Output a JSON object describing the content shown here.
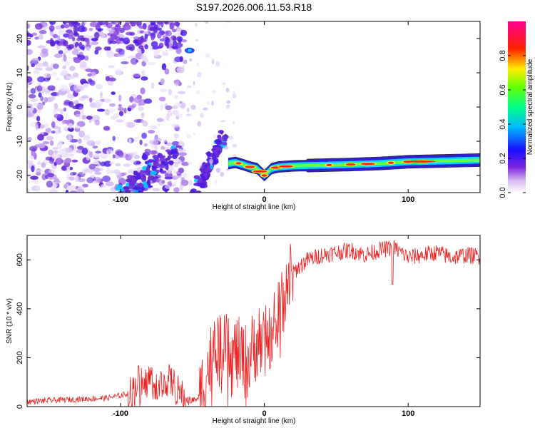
{
  "title": "S197.2026.006.11.53.R18",
  "chart_data": [
    {
      "type": "heatmap",
      "name": "spectrogram",
      "xlabel": "Height of straight line (km)",
      "ylabel": "Frequency (Hz)",
      "xlim": [
        -165,
        150
      ],
      "ylim": [
        -25,
        25
      ],
      "xticks": [
        -100,
        0,
        100
      ],
      "xtick_labels": [
        "-100",
        "0",
        "100"
      ],
      "yticks": [
        -20,
        -10,
        0,
        10,
        20
      ],
      "ytick_labels": [
        "-20",
        "-10",
        "0",
        "10",
        "20"
      ],
      "colorbar": {
        "label": "Normalized spectral amplitude",
        "range": [
          0,
          1
        ],
        "ticks": [
          0.0,
          0.2,
          0.4,
          0.6,
          0.8
        ],
        "tick_labels": [
          "0.0",
          "0.2",
          "0.4",
          "0.6",
          "0.8"
        ],
        "colors": [
          "#ffffff",
          "#a020f0",
          "#0000ff",
          "#00ffff",
          "#00ff00",
          "#ffff00",
          "#ff0000",
          "#ff0090"
        ]
      },
      "ridge": {
        "x": [
          -25,
          -20,
          -15,
          -10,
          -5,
          0,
          5,
          10,
          20,
          40,
          60,
          80,
          100,
          120,
          150
        ],
        "y": [
          -16.5,
          -16.2,
          -16.8,
          -17.5,
          -18.0,
          -20.0,
          -18.0,
          -17.5,
          -17.2,
          -17.0,
          -16.8,
          -16.5,
          -16.0,
          -15.8,
          -15.5
        ]
      },
      "bright_spots_x": [
        -18,
        -10,
        -3,
        0,
        8,
        15,
        45,
        60,
        72,
        88,
        100,
        110
      ]
    },
    {
      "type": "line",
      "name": "snr",
      "xlabel": "Height of straight line (km)",
      "ylabel": "SNR (10 * v/v)",
      "xlim": [
        -165,
        150
      ],
      "ylim": [
        0,
        700
      ],
      "xticks": [
        -100,
        0,
        100
      ],
      "xtick_labels": [
        "-100",
        "0",
        "100"
      ],
      "yticks": [
        0,
        200,
        400,
        600
      ],
      "ytick_labels": [
        "0",
        "200",
        "400",
        "600"
      ],
      "color": "#ee2222",
      "series": [
        {
          "name": "SNR",
          "x": [
            -165,
            -150,
            -130,
            -110,
            -100,
            -92,
            -88,
            -84,
            -80,
            -76,
            -72,
            -68,
            -64,
            -60,
            -55,
            -50,
            -45,
            -42,
            -38,
            -35,
            -32,
            -30,
            -27,
            -24,
            -20,
            -16,
            -12,
            -9,
            -6,
            -3,
            0,
            3,
            6,
            9,
            12,
            15,
            18,
            22,
            26,
            30,
            40,
            50,
            60,
            70,
            80,
            90,
            100,
            110,
            120,
            130,
            140,
            150
          ],
          "y": [
            20,
            25,
            30,
            35,
            45,
            60,
            110,
            80,
            120,
            100,
            90,
            110,
            100,
            60,
            30,
            25,
            40,
            100,
            180,
            220,
            250,
            200,
            260,
            180,
            220,
            200,
            180,
            220,
            260,
            280,
            240,
            300,
            330,
            370,
            440,
            500,
            530,
            560,
            580,
            600,
            620,
            630,
            640,
            620,
            640,
            650,
            610,
            620,
            630,
            610,
            620,
            615
          ]
        }
      ],
      "dip": {
        "x": 89,
        "y": 500
      }
    }
  ]
}
